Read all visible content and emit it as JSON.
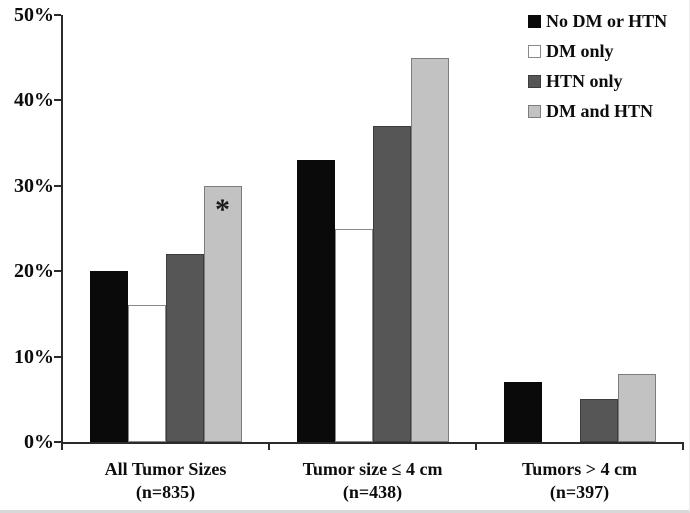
{
  "chart_data": {
    "type": "bar",
    "title": "",
    "xlabel": "",
    "ylabel": "",
    "categories": [
      {
        "line1": "All Tumor Sizes",
        "line2": "(n=835)"
      },
      {
        "line1": "Tumor size ≤ 4 cm",
        "line2": "(n=438)"
      },
      {
        "line1": "Tumors > 4 cm",
        "line2": "(n=397)"
      }
    ],
    "series": [
      {
        "name": "No DM or HTN",
        "values": [
          20,
          33,
          7
        ],
        "fill": "#0a0a0a",
        "border": "#0a0a0a"
      },
      {
        "name": "DM only",
        "values": [
          16,
          25,
          0
        ],
        "fill": "#ffffff",
        "border": "#8a8a8a"
      },
      {
        "name": "HTN only",
        "values": [
          22,
          37,
          5
        ],
        "fill": "#565656",
        "border": "#3c3c3c"
      },
      {
        "name": "DM and HTN",
        "values": [
          30,
          45,
          8
        ],
        "fill": "#c2c2c2",
        "border": "#7d7d7d"
      }
    ],
    "ylim": [
      0,
      50
    ],
    "ytick_step": 10,
    "ytick_labels": [
      "0%",
      "10%",
      "20%",
      "30%",
      "40%",
      "50%"
    ],
    "grid": false,
    "legend_position": "top-right",
    "annotations": [
      {
        "text": "*",
        "series_index": 3,
        "category_index": 0
      }
    ],
    "axis_color": "#2b2b2b"
  }
}
